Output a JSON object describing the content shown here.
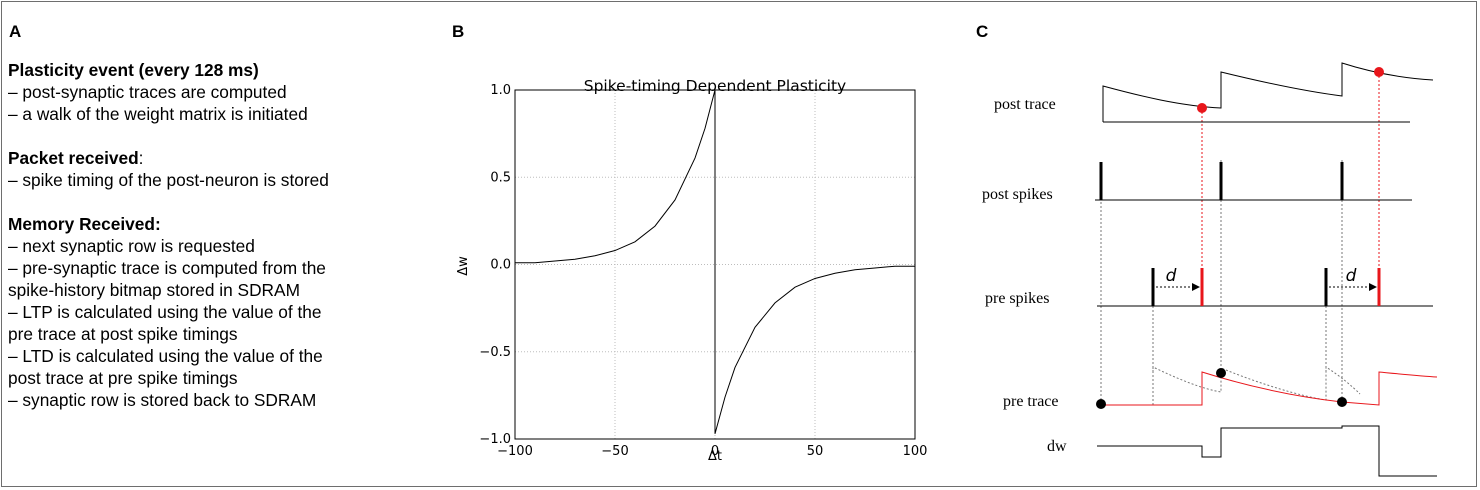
{
  "panels": {
    "a": {
      "letter": "A",
      "sections": [
        {
          "heading": "Plasticity event (every 128 ms)",
          "heading_suffix": "",
          "lines": [
            "– post-synaptic traces are computed",
            "– a walk of the weight matrix is initiated"
          ]
        },
        {
          "heading": "Packet received",
          "heading_suffix": ":",
          "lines": [
            "– spike timing of the post-neuron is stored"
          ]
        },
        {
          "heading": "Memory Received:",
          "heading_suffix": "",
          "lines": [
            "– next synaptic row is requested",
            "– pre-synaptic trace is computed from the",
            "spike-history bitmap stored in SDRAM",
            "– LTP is calculated using the value of the",
            "pre trace at post spike timings",
            "– LTD is calculated using the value of the",
            "post trace at pre spike timings",
            "– synaptic row is stored back to SDRAM"
          ]
        }
      ]
    },
    "b": {
      "letter": "B"
    },
    "c": {
      "letter": "C",
      "row_labels": {
        "post_trace": "post trace",
        "post_spikes": "post spikes",
        "pre_spikes": "pre spikes",
        "pre_trace": "pre trace",
        "dw": "dw"
      },
      "delay_label": "d"
    }
  },
  "colors": {
    "red": "#e8161b",
    "black": "#000000",
    "grid": "#bdbdbd",
    "frame": "#6e6e6e",
    "dashed": "#777777"
  },
  "chart_data": {
    "type": "line",
    "title": "Spike-timing Dependent Plasticity",
    "xlabel": "Δt",
    "ylabel": "Δw",
    "xlim": [
      -100,
      100
    ],
    "ylim": [
      -1.0,
      1.0
    ],
    "x_ticks": [
      -100,
      -50,
      0,
      50,
      100
    ],
    "y_ticks": [
      -1.0,
      -0.5,
      0.0,
      0.5,
      1.0
    ],
    "x_tick_labels": [
      "−100",
      "−50",
      "0",
      "50",
      "100"
    ],
    "y_tick_labels": [
      "−1.0",
      "−0.5",
      "0.0",
      "0.5",
      "1.0"
    ],
    "grid": true,
    "series": [
      {
        "x": [
          -100,
          -90,
          -80,
          -70,
          -60,
          -50,
          -40,
          -30,
          -20,
          -10,
          -5,
          0
        ],
        "y": [
          0.01,
          0.01,
          0.02,
          0.03,
          0.05,
          0.08,
          0.13,
          0.22,
          0.37,
          0.61,
          0.78,
          1.0
        ]
      },
      {
        "x": [
          0,
          5,
          10,
          20,
          30,
          40,
          50,
          60,
          70,
          80,
          90,
          100
        ],
        "y": [
          -0.97,
          -0.76,
          -0.59,
          -0.36,
          -0.22,
          -0.13,
          -0.08,
          -0.05,
          -0.03,
          -0.02,
          -0.01,
          -0.01
        ]
      }
    ]
  }
}
